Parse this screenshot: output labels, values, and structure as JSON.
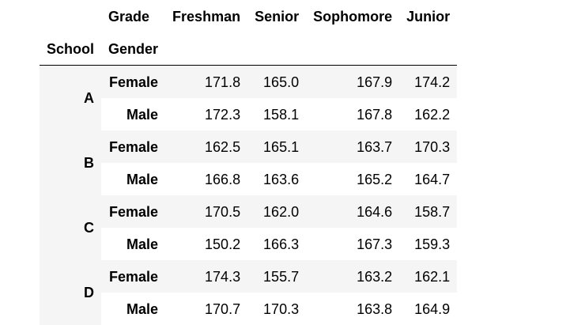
{
  "table": {
    "column_index_name": "Grade",
    "columns": [
      "Freshman",
      "Senior",
      "Sophomore",
      "Junior"
    ],
    "row_index_names": [
      "School",
      "Gender"
    ],
    "rows": [
      {
        "school": "A",
        "gender": "Female",
        "values": [
          "171.8",
          "165.0",
          "167.9",
          "174.2"
        ]
      },
      {
        "school": "",
        "gender": "Male",
        "values": [
          "172.3",
          "158.1",
          "167.8",
          "162.2"
        ]
      },
      {
        "school": "B",
        "gender": "Female",
        "values": [
          "162.5",
          "165.1",
          "163.7",
          "170.3"
        ]
      },
      {
        "school": "",
        "gender": "Male",
        "values": [
          "166.8",
          "163.6",
          "165.2",
          "164.7"
        ]
      },
      {
        "school": "C",
        "gender": "Female",
        "values": [
          "170.5",
          "162.0",
          "164.6",
          "158.7"
        ]
      },
      {
        "school": "",
        "gender": "Male",
        "values": [
          "150.2",
          "166.3",
          "167.3",
          "159.3"
        ]
      },
      {
        "school": "D",
        "gender": "Female",
        "values": [
          "174.3",
          "155.7",
          "163.2",
          "162.1"
        ]
      },
      {
        "school": "",
        "gender": "Male",
        "values": [
          "170.7",
          "170.3",
          "163.8",
          "164.9"
        ]
      }
    ]
  }
}
